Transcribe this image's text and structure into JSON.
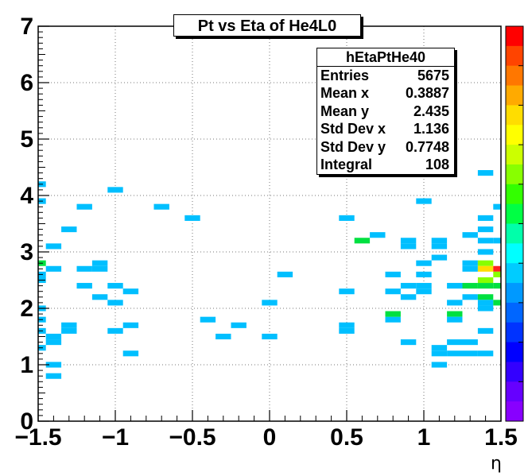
{
  "chart_data": {
    "type": "heatmap",
    "title": "Pt vs Eta of He4L0",
    "xlabel": "η",
    "ylabel": "",
    "xlim": [
      -1.5,
      1.5
    ],
    "ylim": [
      0,
      7
    ],
    "x_ticks": [
      "−1.5",
      "−1",
      "−0.5",
      "0",
      "0.5",
      "1",
      "1.5"
    ],
    "y_ticks": [
      "0",
      "1",
      "2",
      "3",
      "4",
      "5",
      "6",
      "7"
    ],
    "grid": true,
    "bin_width_x": 0.1,
    "bin_width_y": 0.1,
    "colorbar": {
      "colors": [
        "#ff0000",
        "#ff4400",
        "#ff7700",
        "#ffaa00",
        "#ffdd00",
        "#ffff00",
        "#ccff00",
        "#88ff00",
        "#33ff00",
        "#00ff44",
        "#00ffaa",
        "#00ffff",
        "#00ccff",
        "#0099ff",
        "#0066ff",
        "#0033ff",
        "#0000ff",
        "#3300ff",
        "#6600ff",
        "#8800ff"
      ]
    },
    "cells": [
      {
        "x": -1.5,
        "y": 4.2,
        "count": 1
      },
      {
        "x": -1.5,
        "y": 3.9,
        "count": 1
      },
      {
        "x": -1.5,
        "y": 2.8,
        "count": 2
      },
      {
        "x": -1.5,
        "y": 2.6,
        "count": 1
      },
      {
        "x": -1.5,
        "y": 2.5,
        "count": 1
      },
      {
        "x": -1.5,
        "y": 2.0,
        "count": 1
      },
      {
        "x": -1.5,
        "y": 1.8,
        "count": 1
      },
      {
        "x": -1.5,
        "y": 1.6,
        "count": 1
      },
      {
        "x": -1.5,
        "y": 1.3,
        "count": 1
      },
      {
        "x": -1.4,
        "y": 3.1,
        "count": 1
      },
      {
        "x": -1.4,
        "y": 2.7,
        "count": 1
      },
      {
        "x": -1.4,
        "y": 1.5,
        "count": 1
      },
      {
        "x": -1.4,
        "y": 1.4,
        "count": 1
      },
      {
        "x": -1.4,
        "y": 1.0,
        "count": 1
      },
      {
        "x": -1.4,
        "y": 0.8,
        "count": 1
      },
      {
        "x": -1.3,
        "y": 3.4,
        "count": 1
      },
      {
        "x": -1.3,
        "y": 1.7,
        "count": 1
      },
      {
        "x": -1.3,
        "y": 1.6,
        "count": 1
      },
      {
        "x": -1.2,
        "y": 3.8,
        "count": 1
      },
      {
        "x": -1.2,
        "y": 2.7,
        "count": 1
      },
      {
        "x": -1.2,
        "y": 2.4,
        "count": 1
      },
      {
        "x": -1.1,
        "y": 2.8,
        "count": 1
      },
      {
        "x": -1.1,
        "y": 2.7,
        "count": 1
      },
      {
        "x": -1.1,
        "y": 2.2,
        "count": 1
      },
      {
        "x": -1.0,
        "y": 4.1,
        "count": 1
      },
      {
        "x": -1.0,
        "y": 2.4,
        "count": 1
      },
      {
        "x": -1.0,
        "y": 2.1,
        "count": 1
      },
      {
        "x": -1.0,
        "y": 1.6,
        "count": 1
      },
      {
        "x": -0.9,
        "y": 2.3,
        "count": 1
      },
      {
        "x": -0.9,
        "y": 1.7,
        "count": 1
      },
      {
        "x": -0.9,
        "y": 1.2,
        "count": 1
      },
      {
        "x": -0.7,
        "y": 3.8,
        "count": 1
      },
      {
        "x": -0.5,
        "y": 3.6,
        "count": 1
      },
      {
        "x": -0.4,
        "y": 1.8,
        "count": 1
      },
      {
        "x": -0.3,
        "y": 1.5,
        "count": 1
      },
      {
        "x": -0.2,
        "y": 1.7,
        "count": 1
      },
      {
        "x": 0.0,
        "y": 2.1,
        "count": 1
      },
      {
        "x": 0.0,
        "y": 1.5,
        "count": 1
      },
      {
        "x": 0.1,
        "y": 2.6,
        "count": 1
      },
      {
        "x": 0.5,
        "y": 3.6,
        "count": 1
      },
      {
        "x": 0.5,
        "y": 2.3,
        "count": 1
      },
      {
        "x": 0.5,
        "y": 1.7,
        "count": 1
      },
      {
        "x": 0.5,
        "y": 1.6,
        "count": 1
      },
      {
        "x": 0.6,
        "y": 3.2,
        "count": 2
      },
      {
        "x": 0.7,
        "y": 3.3,
        "count": 1
      },
      {
        "x": 0.8,
        "y": 2.6,
        "count": 1
      },
      {
        "x": 0.8,
        "y": 2.3,
        "count": 1
      },
      {
        "x": 0.8,
        "y": 1.8,
        "count": 1
      },
      {
        "x": 0.8,
        "y": 1.9,
        "count": 2
      },
      {
        "x": 0.9,
        "y": 3.2,
        "count": 1
      },
      {
        "x": 0.9,
        "y": 3.1,
        "count": 1
      },
      {
        "x": 0.9,
        "y": 2.4,
        "count": 1
      },
      {
        "x": 0.9,
        "y": 2.2,
        "count": 1
      },
      {
        "x": 0.9,
        "y": 1.4,
        "count": 1
      },
      {
        "x": 1.0,
        "y": 3.9,
        "count": 1
      },
      {
        "x": 1.0,
        "y": 2.8,
        "count": 1
      },
      {
        "x": 1.0,
        "y": 2.6,
        "count": 1
      },
      {
        "x": 1.0,
        "y": 2.4,
        "count": 1
      },
      {
        "x": 1.0,
        "y": 2.3,
        "count": 1
      },
      {
        "x": 1.1,
        "y": 3.2,
        "count": 1
      },
      {
        "x": 1.1,
        "y": 3.1,
        "count": 1
      },
      {
        "x": 1.1,
        "y": 2.9,
        "count": 1
      },
      {
        "x": 1.1,
        "y": 1.3,
        "count": 1
      },
      {
        "x": 1.1,
        "y": 1.2,
        "count": 1
      },
      {
        "x": 1.1,
        "y": 1.0,
        "count": 1
      },
      {
        "x": 1.2,
        "y": 2.4,
        "count": 1
      },
      {
        "x": 1.2,
        "y": 2.1,
        "count": 1
      },
      {
        "x": 1.2,
        "y": 1.9,
        "count": 2
      },
      {
        "x": 1.2,
        "y": 1.8,
        "count": 1
      },
      {
        "x": 1.2,
        "y": 1.4,
        "count": 1
      },
      {
        "x": 1.2,
        "y": 1.2,
        "count": 1
      },
      {
        "x": 1.3,
        "y": 3.3,
        "count": 1
      },
      {
        "x": 1.3,
        "y": 2.8,
        "count": 1
      },
      {
        "x": 1.3,
        "y": 2.7,
        "count": 1
      },
      {
        "x": 1.3,
        "y": 2.4,
        "count": 2
      },
      {
        "x": 1.3,
        "y": 2.2,
        "count": 1
      },
      {
        "x": 1.3,
        "y": 1.4,
        "count": 1
      },
      {
        "x": 1.3,
        "y": 1.2,
        "count": 1
      },
      {
        "x": 1.4,
        "y": 4.4,
        "count": 1
      },
      {
        "x": 1.4,
        "y": 3.6,
        "count": 1
      },
      {
        "x": 1.4,
        "y": 3.4,
        "count": 1
      },
      {
        "x": 1.4,
        "y": 3.2,
        "count": 1
      },
      {
        "x": 1.4,
        "y": 3.0,
        "count": 1
      },
      {
        "x": 1.4,
        "y": 2.8,
        "count": 3
      },
      {
        "x": 1.4,
        "y": 2.7,
        "count": 4
      },
      {
        "x": 1.4,
        "y": 2.5,
        "count": 3
      },
      {
        "x": 1.4,
        "y": 2.4,
        "count": 2
      },
      {
        "x": 1.4,
        "y": 2.2,
        "count": 2
      },
      {
        "x": 1.4,
        "y": 2.1,
        "count": 1
      },
      {
        "x": 1.4,
        "y": 2.0,
        "count": 1
      },
      {
        "x": 1.4,
        "y": 1.6,
        "count": 1
      },
      {
        "x": 1.4,
        "y": 1.2,
        "count": 1
      },
      {
        "x": 1.5,
        "y": 3.8,
        "count": 1
      },
      {
        "x": 1.5,
        "y": 3.2,
        "count": 1
      },
      {
        "x": 1.5,
        "y": 2.7,
        "count": 5
      },
      {
        "x": 1.5,
        "y": 2.6,
        "count": 3
      },
      {
        "x": 1.5,
        "y": 2.4,
        "count": 2
      },
      {
        "x": 1.5,
        "y": 2.1,
        "count": 2
      }
    ],
    "max_count": 5
  },
  "stats": {
    "name": "hEtaPtHe40",
    "rows": [
      {
        "label": "Entries",
        "value": "5675"
      },
      {
        "label": "Mean x",
        "value": "0.3887"
      },
      {
        "label": "Mean y",
        "value": "2.435"
      },
      {
        "label": "Std Dev x",
        "value": "1.136"
      },
      {
        "label": "Std Dev y",
        "value": "0.7748"
      },
      {
        "label": "Integral",
        "value": "108"
      }
    ]
  }
}
